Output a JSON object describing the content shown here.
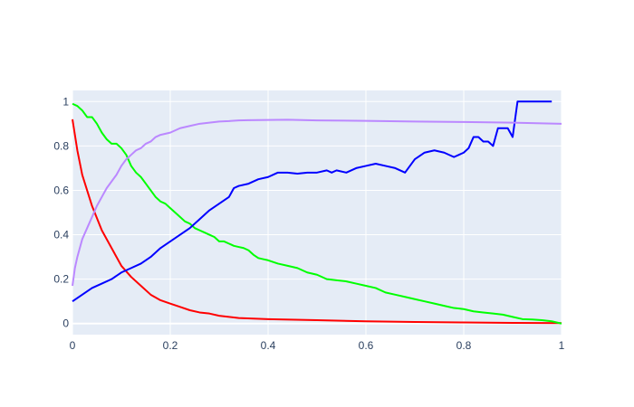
{
  "chart_data": {
    "type": "line",
    "title": "",
    "xlabel": "",
    "ylabel": "",
    "xlim": [
      0,
      1
    ],
    "ylim": [
      -0.05,
      1.05
    ],
    "x_ticks": [
      0,
      0.2,
      0.4,
      0.6,
      0.8,
      1
    ],
    "x_tick_labels": [
      "0",
      "0.2",
      "0.4",
      "0.6",
      "0.8",
      "1"
    ],
    "y_ticks": [
      0,
      0.2,
      0.4,
      0.6,
      0.8,
      1
    ],
    "y_tick_labels": [
      "0",
      "0.2",
      "0.4",
      "0.6",
      "0.8",
      "1"
    ],
    "grid": true,
    "legend": "none",
    "plot_background": "#e5ecf6",
    "grid_color": "#ffffff",
    "series": [
      {
        "color": "#ff0000",
        "x": [
          0,
          0.01,
          0.02,
          0.04,
          0.06,
          0.08,
          0.1,
          0.12,
          0.14,
          0.16,
          0.18,
          0.2,
          0.22,
          0.24,
          0.26,
          0.28,
          0.3,
          0.34,
          0.4,
          0.5,
          0.6,
          0.7,
          0.8,
          0.9,
          1.0
        ],
        "y": [
          0.92,
          0.78,
          0.67,
          0.53,
          0.42,
          0.34,
          0.26,
          0.21,
          0.17,
          0.13,
          0.105,
          0.09,
          0.075,
          0.06,
          0.05,
          0.045,
          0.035,
          0.025,
          0.02,
          0.015,
          0.01,
          0.007,
          0.005,
          0.003,
          0.002
        ]
      },
      {
        "color": "#00ff00",
        "x": [
          0,
          0.01,
          0.02,
          0.03,
          0.04,
          0.05,
          0.06,
          0.07,
          0.08,
          0.09,
          0.1,
          0.11,
          0.12,
          0.13,
          0.14,
          0.15,
          0.16,
          0.17,
          0.18,
          0.19,
          0.2,
          0.21,
          0.22,
          0.23,
          0.24,
          0.25,
          0.26,
          0.27,
          0.28,
          0.29,
          0.3,
          0.31,
          0.32,
          0.33,
          0.34,
          0.35,
          0.36,
          0.37,
          0.38,
          0.39,
          0.4,
          0.42,
          0.44,
          0.46,
          0.48,
          0.5,
          0.52,
          0.54,
          0.56,
          0.58,
          0.6,
          0.62,
          0.64,
          0.66,
          0.68,
          0.7,
          0.72,
          0.74,
          0.76,
          0.78,
          0.8,
          0.82,
          0.84,
          0.86,
          0.88,
          0.9,
          0.92,
          0.94,
          0.96,
          0.98,
          0.99,
          1.0
        ],
        "y": [
          0.99,
          0.98,
          0.96,
          0.93,
          0.93,
          0.9,
          0.86,
          0.83,
          0.81,
          0.81,
          0.79,
          0.76,
          0.71,
          0.68,
          0.66,
          0.63,
          0.6,
          0.57,
          0.55,
          0.54,
          0.52,
          0.5,
          0.48,
          0.46,
          0.45,
          0.43,
          0.42,
          0.41,
          0.4,
          0.39,
          0.37,
          0.37,
          0.36,
          0.35,
          0.345,
          0.34,
          0.33,
          0.31,
          0.295,
          0.29,
          0.285,
          0.27,
          0.26,
          0.25,
          0.23,
          0.22,
          0.2,
          0.195,
          0.19,
          0.18,
          0.17,
          0.16,
          0.14,
          0.13,
          0.12,
          0.11,
          0.1,
          0.09,
          0.08,
          0.07,
          0.065,
          0.055,
          0.05,
          0.045,
          0.04,
          0.03,
          0.02,
          0.018,
          0.015,
          0.01,
          0.005,
          0.0
        ]
      },
      {
        "color": "#0000ff",
        "x": [
          0,
          0.02,
          0.04,
          0.06,
          0.08,
          0.1,
          0.12,
          0.14,
          0.16,
          0.18,
          0.2,
          0.22,
          0.24,
          0.26,
          0.28,
          0.3,
          0.32,
          0.33,
          0.34,
          0.36,
          0.38,
          0.4,
          0.42,
          0.44,
          0.46,
          0.48,
          0.5,
          0.52,
          0.53,
          0.54,
          0.56,
          0.58,
          0.6,
          0.62,
          0.64,
          0.66,
          0.68,
          0.7,
          0.72,
          0.74,
          0.76,
          0.78,
          0.8,
          0.81,
          0.82,
          0.83,
          0.84,
          0.85,
          0.86,
          0.87,
          0.88,
          0.89,
          0.9,
          0.91,
          0.92,
          0.94,
          0.96,
          0.98
        ],
        "y": [
          0.1,
          0.13,
          0.16,
          0.18,
          0.2,
          0.23,
          0.25,
          0.27,
          0.3,
          0.34,
          0.37,
          0.4,
          0.43,
          0.47,
          0.51,
          0.54,
          0.57,
          0.61,
          0.62,
          0.63,
          0.65,
          0.66,
          0.68,
          0.68,
          0.675,
          0.68,
          0.68,
          0.69,
          0.68,
          0.69,
          0.68,
          0.7,
          0.71,
          0.72,
          0.71,
          0.7,
          0.68,
          0.74,
          0.77,
          0.78,
          0.77,
          0.75,
          0.77,
          0.79,
          0.84,
          0.84,
          0.82,
          0.82,
          0.8,
          0.88,
          0.88,
          0.88,
          0.84,
          1.0,
          1.0,
          1.0,
          1.0,
          1.0
        ]
      },
      {
        "color": "#bb88ff",
        "x": [
          0,
          0.005,
          0.01,
          0.02,
          0.03,
          0.04,
          0.05,
          0.06,
          0.07,
          0.08,
          0.09,
          0.1,
          0.11,
          0.12,
          0.13,
          0.14,
          0.15,
          0.16,
          0.17,
          0.18,
          0.2,
          0.22,
          0.24,
          0.26,
          0.28,
          0.3,
          0.32,
          0.34,
          0.36,
          0.4,
          0.44,
          0.5,
          0.6,
          0.7,
          0.8,
          0.9,
          1.0
        ],
        "y": [
          0.17,
          0.25,
          0.3,
          0.38,
          0.43,
          0.48,
          0.53,
          0.57,
          0.61,
          0.64,
          0.67,
          0.71,
          0.74,
          0.76,
          0.78,
          0.79,
          0.81,
          0.82,
          0.84,
          0.85,
          0.86,
          0.88,
          0.89,
          0.9,
          0.905,
          0.91,
          0.912,
          0.915,
          0.916,
          0.917,
          0.918,
          0.915,
          0.913,
          0.91,
          0.908,
          0.905,
          0.9
        ]
      }
    ]
  }
}
